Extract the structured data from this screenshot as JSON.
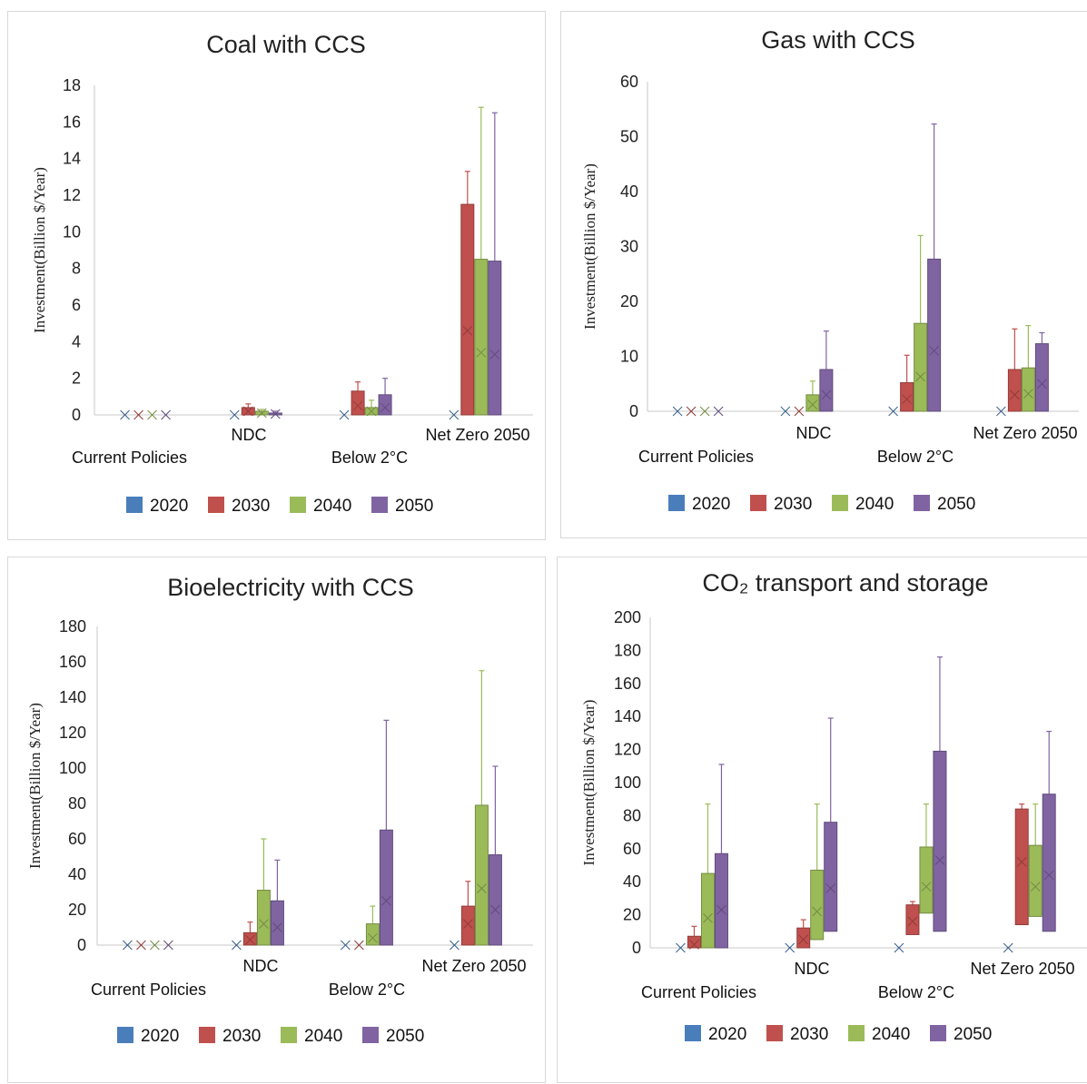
{
  "colors": {
    "2020": "#4a7ebb",
    "2030": "#c0504d",
    "2040": "#9bbb59",
    "2050": "#8064a2",
    "axis": "#c8c8c8"
  },
  "legend": [
    "2020",
    "2030",
    "2040",
    "2050"
  ],
  "categories": [
    "Current Policies",
    "NDC",
    "Below 2°C",
    "Net Zero 2050"
  ],
  "ylabel": "Investment(Billion $/Year)",
  "chart_data": [
    {
      "type": "box",
      "title": "Coal with CCS",
      "ylabel": "Investment(Billion $/Year)",
      "ylim": [
        0,
        18
      ],
      "yticks": [
        0,
        2,
        4,
        6,
        8,
        10,
        12,
        14,
        16,
        18
      ],
      "categories": [
        "Current Policies",
        "NDC",
        "Below 2°C",
        "Net Zero 2050"
      ],
      "series": [
        {
          "name": "2020",
          "q1": [
            0,
            0,
            0,
            0
          ],
          "q3": [
            0,
            0,
            0,
            0
          ],
          "max": [
            0,
            0,
            0,
            0
          ],
          "mean": [
            0,
            0,
            0,
            0
          ]
        },
        {
          "name": "2030",
          "q1": [
            0,
            0,
            0,
            0
          ],
          "q3": [
            0,
            0.4,
            1.3,
            11.5
          ],
          "max": [
            0,
            0.6,
            1.8,
            13.3
          ],
          "mean": [
            0,
            0.2,
            0.5,
            4.6
          ]
        },
        {
          "name": "2040",
          "q1": [
            0,
            0,
            0,
            0
          ],
          "q3": [
            0,
            0.2,
            0.4,
            8.5
          ],
          "max": [
            0,
            0.3,
            0.8,
            16.8
          ],
          "mean": [
            0,
            0.1,
            0.2,
            3.4
          ]
        },
        {
          "name": "2050",
          "q1": [
            0,
            0,
            0,
            0
          ],
          "q3": [
            0,
            0.1,
            1.1,
            8.4
          ],
          "max": [
            0,
            0.2,
            2.0,
            16.5
          ],
          "mean": [
            0,
            0.05,
            0.4,
            3.3
          ]
        }
      ]
    },
    {
      "type": "box",
      "title": "Gas with CCS",
      "ylabel": "Investment(Billion $/Year)",
      "ylim": [
        0,
        60
      ],
      "yticks": [
        0,
        10,
        20,
        30,
        40,
        50,
        60
      ],
      "categories": [
        "Current Policies",
        "NDC",
        "Below 2°C",
        "Net Zero 2050"
      ],
      "series": [
        {
          "name": "2020",
          "q1": [
            0,
            0,
            0,
            0
          ],
          "q3": [
            0,
            0,
            0,
            0
          ],
          "max": [
            0,
            0,
            0,
            0
          ],
          "mean": [
            0,
            0,
            0,
            0
          ]
        },
        {
          "name": "2030",
          "q1": [
            0,
            0,
            0,
            0
          ],
          "q3": [
            0,
            0,
            5.2,
            7.6
          ],
          "max": [
            0,
            0,
            10.2,
            15.0
          ],
          "mean": [
            0,
            0,
            2.2,
            3.0
          ]
        },
        {
          "name": "2040",
          "q1": [
            0,
            0,
            0,
            0
          ],
          "q3": [
            0,
            3.0,
            16.0,
            7.9
          ],
          "max": [
            0,
            5.5,
            32.0,
            15.6
          ],
          "mean": [
            0,
            1.2,
            6.3,
            3.2
          ]
        },
        {
          "name": "2050",
          "q1": [
            0,
            0,
            0,
            0
          ],
          "q3": [
            0,
            7.6,
            27.7,
            12.3
          ],
          "max": [
            0,
            14.6,
            52.3,
            14.3
          ],
          "mean": [
            0,
            3.0,
            11.0,
            5.0
          ]
        }
      ]
    },
    {
      "type": "box",
      "title": "Bioelectricity with CCS",
      "ylabel": "Investment(Billion $/Year)",
      "ylim": [
        0,
        180
      ],
      "yticks": [
        0,
        20,
        40,
        60,
        80,
        100,
        120,
        140,
        160,
        180
      ],
      "categories": [
        "Current Policies",
        "NDC",
        "Below 2°C",
        "Net Zero 2050"
      ],
      "series": [
        {
          "name": "2020",
          "q1": [
            0,
            0,
            0,
            0
          ],
          "q3": [
            0,
            0,
            0,
            0
          ],
          "max": [
            0,
            0,
            0,
            0
          ],
          "mean": [
            0,
            0,
            0,
            0
          ]
        },
        {
          "name": "2030",
          "q1": [
            0,
            0,
            0,
            0
          ],
          "q3": [
            0,
            7,
            0,
            22
          ],
          "max": [
            0,
            13,
            0,
            36
          ],
          "mean": [
            0,
            3,
            0,
            12
          ]
        },
        {
          "name": "2040",
          "q1": [
            0,
            0,
            0,
            0
          ],
          "q3": [
            0,
            31,
            12,
            79
          ],
          "max": [
            0,
            60,
            22,
            155
          ],
          "mean": [
            0,
            12,
            4,
            32
          ]
        },
        {
          "name": "2050",
          "q1": [
            0,
            0,
            0,
            0
          ],
          "q3": [
            0,
            25,
            65,
            51
          ],
          "max": [
            0,
            48,
            127,
            101
          ],
          "mean": [
            0,
            10,
            25,
            20
          ]
        }
      ]
    },
    {
      "type": "box",
      "title": "CO₂ transport and storage",
      "ylabel": "Investment(Billion $/Year)",
      "ylim": [
        0,
        200
      ],
      "yticks": [
        0,
        20,
        40,
        60,
        80,
        100,
        120,
        140,
        160,
        180,
        200
      ],
      "categories": [
        "Current Policies",
        "NDC",
        "Below 2°C",
        "Net Zero 2050"
      ],
      "series": [
        {
          "name": "2020",
          "q1": [
            0,
            0,
            0,
            0
          ],
          "q3": [
            0,
            0,
            0,
            0
          ],
          "max": [
            0,
            0,
            0,
            0
          ],
          "mean": [
            0,
            0,
            0,
            0
          ]
        },
        {
          "name": "2030",
          "q1": [
            0,
            0,
            8,
            14
          ],
          "q3": [
            7,
            12,
            26,
            84
          ],
          "max": [
            13,
            17,
            28,
            87
          ],
          "mean": [
            2,
            5,
            16,
            52
          ]
        },
        {
          "name": "2040",
          "q1": [
            0,
            5,
            21,
            19
          ],
          "q3": [
            45,
            47,
            61,
            62
          ],
          "max": [
            87,
            87,
            87,
            87
          ],
          "mean": [
            18,
            22,
            37,
            37
          ]
        },
        {
          "name": "2050",
          "q1": [
            0,
            10,
            10,
            10
          ],
          "q3": [
            57,
            76,
            119,
            93
          ],
          "max": [
            111,
            139,
            176,
            131
          ],
          "mean": [
            23,
            36,
            53,
            44
          ]
        }
      ]
    }
  ]
}
